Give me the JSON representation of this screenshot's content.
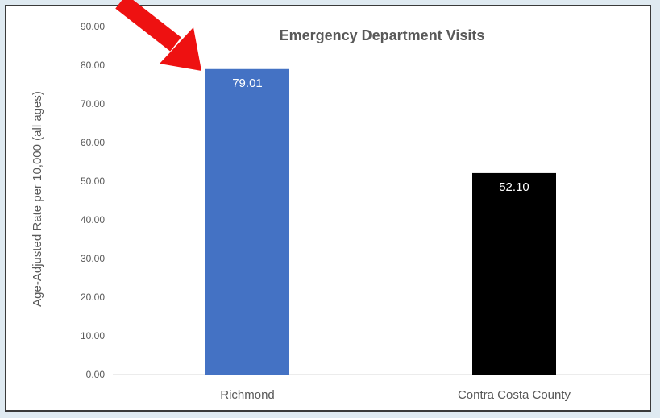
{
  "chart_data": {
    "type": "bar",
    "title": "Emergency Department Visits",
    "xlabel": "",
    "ylabel": "Age-Adjusted Rate per 10,000 (all ages)",
    "categories": [
      "Richmond",
      "Contra Costa County"
    ],
    "values": [
      79.01,
      52.1
    ],
    "data_labels": [
      "79.01",
      "52.10"
    ],
    "bar_colors": [
      "#4472c4",
      "#000000"
    ],
    "ylim": [
      0,
      90
    ],
    "yticks": [
      "0.00",
      "10.00",
      "20.00",
      "30.00",
      "40.00",
      "50.00",
      "60.00",
      "70.00",
      "80.00",
      "90.00"
    ],
    "grid": false,
    "legend": "none"
  },
  "annotation": {
    "arrow_color": "#ee1111",
    "arrow_icon": "red-arrow-icon"
  }
}
